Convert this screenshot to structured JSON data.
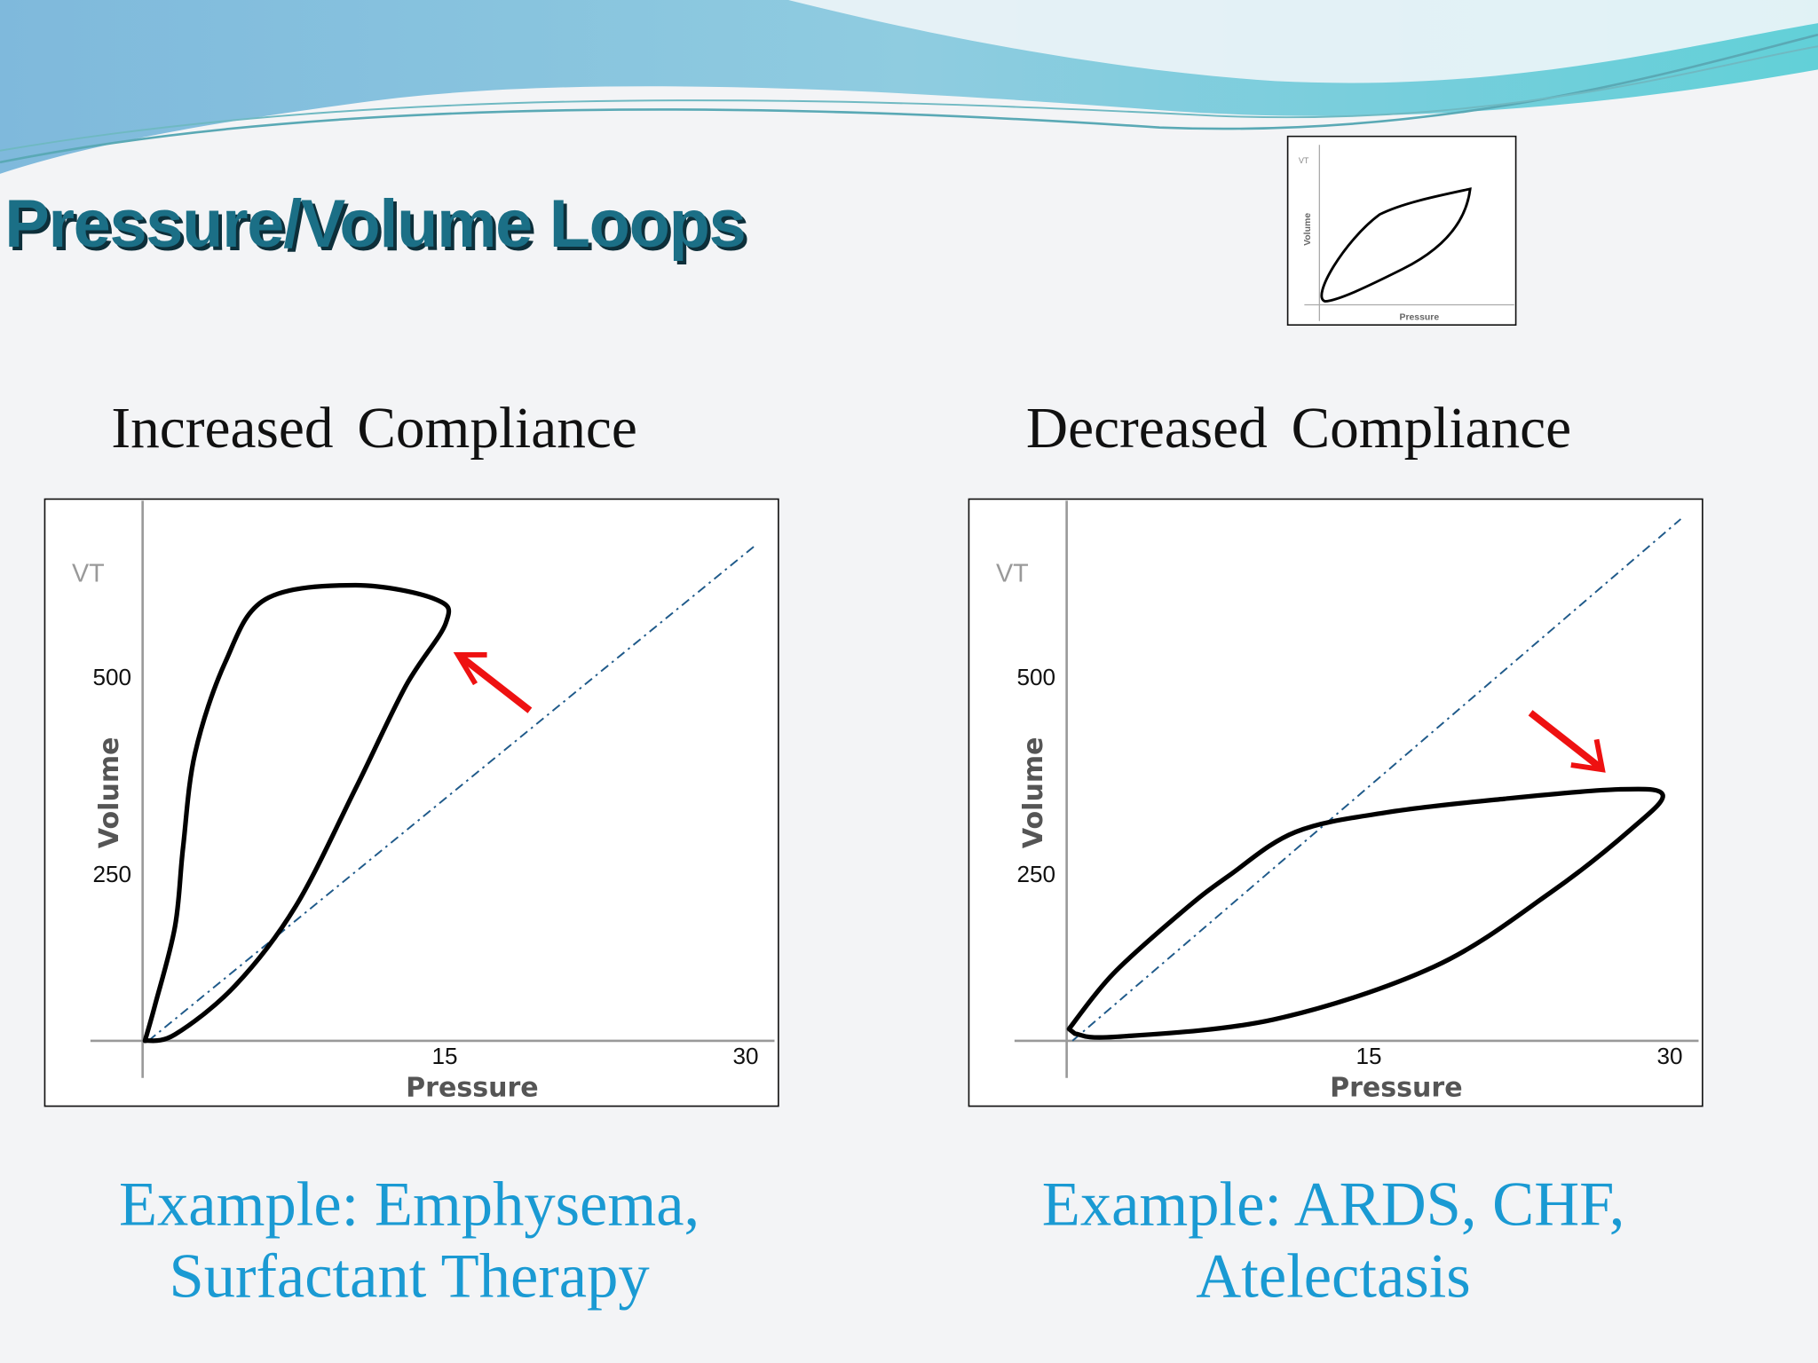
{
  "title": "Pressure/Volume Loops",
  "thumbnail": {
    "y_label": "Volume",
    "x_label": "Pressure",
    "vt_label": "VT"
  },
  "left": {
    "heading": "Increased  Compliance",
    "example_line1": "Example: Emphysema,",
    "example_line2": "Surfactant Therapy"
  },
  "right": {
    "heading": "Decreased  Compliance",
    "example_line1": "Example: ARDS, CHF,",
    "example_line2": "Atelectasis"
  },
  "colors": {
    "title": "#1b6f86",
    "example": "#1a9ad3",
    "arrow": "#ee1111",
    "reference_line": "#1f5a8a"
  },
  "chart_data": [
    {
      "type": "line",
      "title": "Increased Compliance",
      "xlabel": "Pressure",
      "ylabel": "Volume",
      "vt_label": "VT",
      "x_ticks": [
        "15",
        "30"
      ],
      "y_ticks": [
        "250",
        "500"
      ],
      "xlim": [
        0,
        31
      ],
      "ylim": [
        0,
        620
      ],
      "series": [
        {
          "name": "PV loop",
          "x": [
            0,
            0.5,
            1.5,
            1.9,
            2.5,
            4.0,
            6.0,
            10.5,
            14.5,
            15.0,
            13.0,
            10.5,
            7.5,
            4.5,
            1.5,
            0
          ],
          "y": [
            0,
            45,
            145,
            245,
            365,
            480,
            560,
            578,
            560,
            530,
            450,
            320,
            170,
            70,
            8,
            0
          ]
        },
        {
          "name": "reference",
          "style": "dash-dot",
          "x": [
            0,
            30.5
          ],
          "y": [
            0,
            630
          ]
        }
      ],
      "annotations": [
        {
          "type": "arrow",
          "direction": "up-left",
          "meaning": "loop shifts toward volume axis"
        }
      ]
    },
    {
      "type": "line",
      "title": "Decreased Compliance",
      "xlabel": "Pressure",
      "ylabel": "Volume",
      "vt_label": "VT",
      "x_ticks": [
        "15",
        "30"
      ],
      "y_ticks": [
        "250",
        "500"
      ],
      "xlim": [
        0,
        31
      ],
      "ylim": [
        0,
        620
      ],
      "series": [
        {
          "name": "PV loop",
          "x": [
            0,
            2.2,
            5.7,
            8.0,
            11.3,
            15.9,
            21.7,
            27.4,
            29.6,
            28.0,
            24.0,
            18.2,
            10.2,
            2.3,
            0.3
          ],
          "y": [
            15,
            85,
            165,
            210,
            265,
            290,
            307,
            319,
            312,
            268,
            188,
            94,
            27,
            5,
            9
          ]
        },
        {
          "name": "reference",
          "style": "dash-dot",
          "x": [
            0,
            30.5
          ],
          "y": [
            0,
            662
          ]
        }
      ],
      "annotations": [
        {
          "type": "arrow",
          "direction": "down-right",
          "meaning": "loop shifts toward pressure axis"
        }
      ]
    }
  ]
}
